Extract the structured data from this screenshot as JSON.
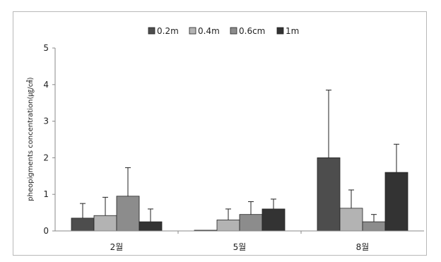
{
  "chart_data": {
    "type": "bar",
    "title": "",
    "xlabel": "",
    "ylabel": "pheopigments concentration(㎍/㎠)",
    "categories": [
      "2월",
      "5월",
      "8월"
    ],
    "ylim": [
      0,
      5
    ],
    "yticks": [
      "0",
      "1",
      "2",
      "3",
      "4",
      "5"
    ],
    "grid": false,
    "legend_position": "top",
    "series": [
      {
        "name": "0.2m",
        "values": [
          0.35,
          0.0,
          2.0
        ],
        "errors": [
          0.4,
          0.0,
          1.85
        ],
        "color": "#4d4d4d"
      },
      {
        "name": "0.4m",
        "values": [
          0.42,
          0.3,
          0.62
        ],
        "errors": [
          0.5,
          0.3,
          0.5
        ],
        "color": "#b3b3b3"
      },
      {
        "name": "0.6cm",
        "values": [
          0.95,
          0.45,
          0.25
        ],
        "errors": [
          0.78,
          0.35,
          0.2
        ],
        "color": "#8c8c8c"
      },
      {
        "name": "1m",
        "values": [
          0.25,
          0.6,
          1.6
        ],
        "errors": [
          0.35,
          0.27,
          0.77
        ],
        "color": "#333333"
      }
    ]
  }
}
